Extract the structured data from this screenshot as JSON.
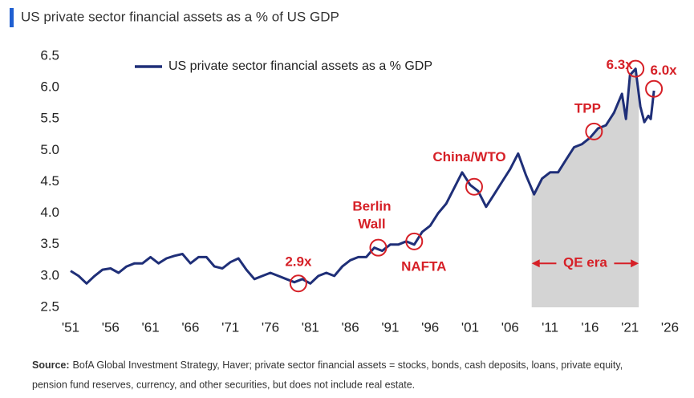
{
  "chart_data": {
    "type": "line",
    "title": "US private sector financial assets as a % of US GDP",
    "x": [
      1951,
      1952,
      1953,
      1954,
      1955,
      1956,
      1957,
      1958,
      1959,
      1960,
      1961,
      1962,
      1963,
      1964,
      1965,
      1966,
      1967,
      1968,
      1969,
      1970,
      1971,
      1972,
      1973,
      1974,
      1975,
      1976,
      1977,
      1978,
      1979,
      1980,
      1981,
      1982,
      1983,
      1984,
      1985,
      1986,
      1987,
      1988,
      1989,
      1990,
      1991,
      1992,
      1993,
      1994,
      1995,
      1996,
      1997,
      1998,
      1999,
      2000,
      2001,
      2002,
      2003,
      2004,
      2005,
      2006,
      2007,
      2008,
      2009,
      2010,
      2011,
      2012,
      2013,
      2014,
      2015,
      2016,
      2017,
      2018,
      2019,
      2020,
      2020.5,
      2021,
      2021.7,
      2022.3,
      2022.8,
      2023.3,
      2023.6,
      2024
    ],
    "series": [
      {
        "name": "US private sector financial assets as a % GDP",
        "color": "#1f2f78",
        "values": [
          3.08,
          3.0,
          2.88,
          3.0,
          3.1,
          3.12,
          3.05,
          3.15,
          3.2,
          3.2,
          3.3,
          3.2,
          3.28,
          3.32,
          3.35,
          3.2,
          3.3,
          3.3,
          3.15,
          3.12,
          3.22,
          3.28,
          3.1,
          2.95,
          3.0,
          3.05,
          3.0,
          2.95,
          2.9,
          2.95,
          2.88,
          3.0,
          3.05,
          3.0,
          3.15,
          3.25,
          3.3,
          3.3,
          3.45,
          3.4,
          3.5,
          3.5,
          3.55,
          3.5,
          3.7,
          3.8,
          4.0,
          4.15,
          4.4,
          4.65,
          4.45,
          4.35,
          4.1,
          4.3,
          4.5,
          4.7,
          4.95,
          4.6,
          4.3,
          4.55,
          4.65,
          4.65,
          4.85,
          5.05,
          5.1,
          5.2,
          5.35,
          5.4,
          5.6,
          5.9,
          5.5,
          6.2,
          6.3,
          5.7,
          5.45,
          5.55,
          5.5,
          5.95
        ]
      }
    ],
    "xlim": [
      1951,
      2026
    ],
    "xticks": [
      {
        "value": 1951,
        "label": "'51"
      },
      {
        "value": 1956,
        "label": "'56"
      },
      {
        "value": 1961,
        "label": "'61"
      },
      {
        "value": 1966,
        "label": "'66"
      },
      {
        "value": 1971,
        "label": "'71"
      },
      {
        "value": 1976,
        "label": "'76"
      },
      {
        "value": 1981,
        "label": "'81"
      },
      {
        "value": 1986,
        "label": "'86"
      },
      {
        "value": 1991,
        "label": "'91"
      },
      {
        "value": 1996,
        "label": "'96"
      },
      {
        "value": 2001,
        "label": "'01"
      },
      {
        "value": 2006,
        "label": "'06"
      },
      {
        "value": 2011,
        "label": "'11"
      },
      {
        "value": 2016,
        "label": "'16"
      },
      {
        "value": 2021,
        "label": "'21"
      },
      {
        "value": 2026,
        "label": "'26"
      }
    ],
    "ylim": [
      2.5,
      6.5
    ],
    "yticks": [
      2.5,
      {
        "value": 3,
        "label": "3.0"
      },
      3.5,
      {
        "value": 4,
        "label": "4.0"
      },
      4.5,
      {
        "value": 5,
        "label": "5.0"
      },
      5.5,
      {
        "value": 6,
        "label": "6.0"
      },
      6.5
    ],
    "qe_span": [
      2008.7,
      2022.1
    ],
    "qe_label": "QE era",
    "annotations": [
      {
        "text": "2.9x",
        "x": 1979.5,
        "y": 2.88
      },
      {
        "text": "Berlin Wall",
        "x": 1989.5,
        "y": 3.45
      },
      {
        "text": "NAFTA",
        "x": 1994,
        "y": 3.55
      },
      {
        "text": "China/WTO",
        "x": 2001.5,
        "y": 4.42
      },
      {
        "text": "TPP",
        "x": 2016.5,
        "y": 5.3
      },
      {
        "text": "6.3x",
        "x": 2021.7,
        "y": 6.3
      },
      {
        "text": "6.0x",
        "x": 2024,
        "y": 5.98
      }
    ],
    "source_label": "Source:",
    "source_lines": [
      "BofA Global Investment Strategy, Haver; private sector financial assets = stocks, bonds, cash deposits, loans, private equity,",
      "pension fund reserves, currency, and other securities, but does not include real estate."
    ]
  }
}
